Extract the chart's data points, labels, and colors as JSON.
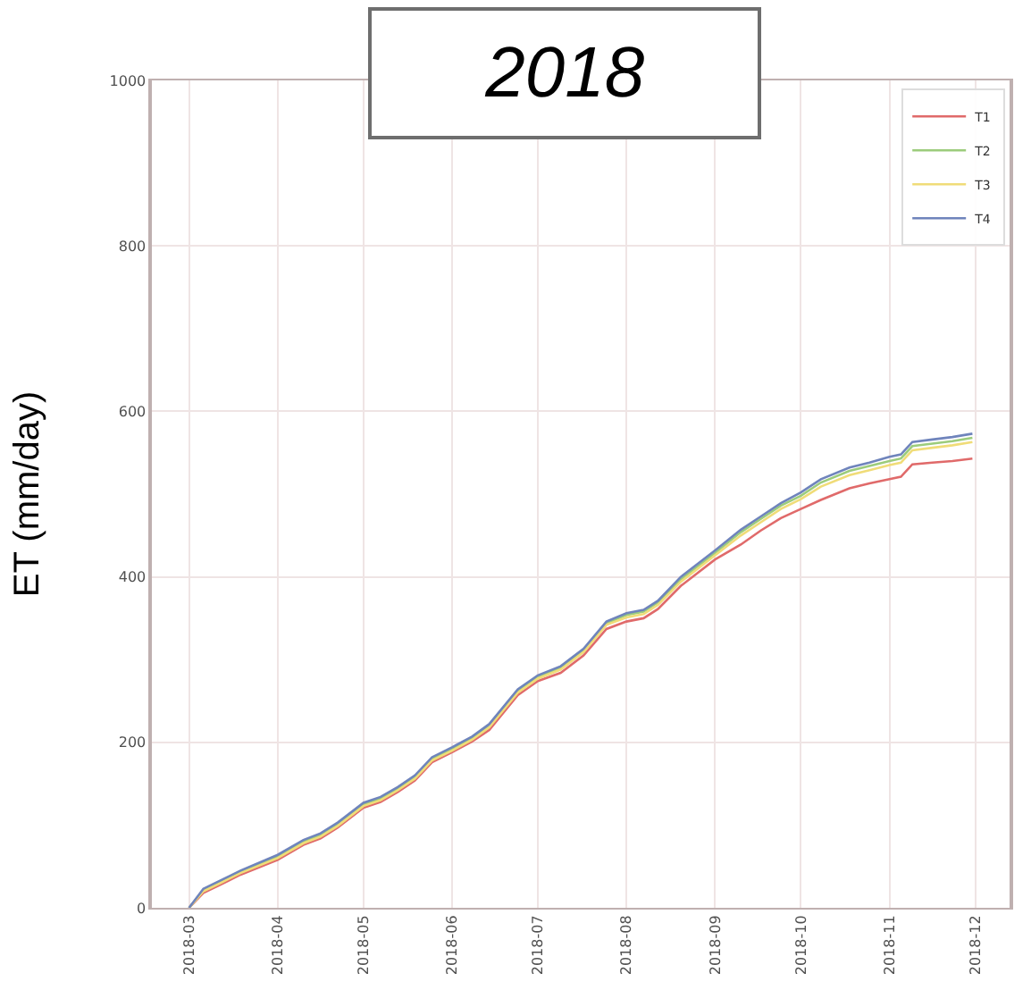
{
  "chart_data": {
    "type": "line",
    "title": "2018",
    "ylabel": "ET (mm/day)",
    "x": [
      "2018-03-01",
      "2018-03-06",
      "2018-03-12",
      "2018-03-19",
      "2018-04-01",
      "2018-04-10",
      "2018-04-16",
      "2018-04-22",
      "2018-05-01",
      "2018-05-07",
      "2018-05-13",
      "2018-05-19",
      "2018-05-25",
      "2018-06-01",
      "2018-06-08",
      "2018-06-14",
      "2018-06-24",
      "2018-07-01",
      "2018-07-09",
      "2018-07-17",
      "2018-07-25",
      "2018-08-01",
      "2018-08-07",
      "2018-08-12",
      "2018-08-20",
      "2018-09-01",
      "2018-09-10",
      "2018-09-17",
      "2018-09-24",
      "2018-10-01",
      "2018-10-08",
      "2018-10-18",
      "2018-10-25",
      "2018-11-01",
      "2018-11-05",
      "2018-11-09",
      "2018-11-16",
      "2018-11-23",
      "2018-11-30"
    ],
    "series": [
      {
        "name": "T1",
        "color": "#e06a6a",
        "values": [
          0,
          18,
          28,
          40,
          58,
          76,
          84,
          97,
          121,
          128,
          140,
          154,
          176,
          188,
          201,
          215,
          257,
          274,
          284,
          305,
          337,
          346,
          350,
          361,
          389,
          421,
          439,
          456,
          471,
          482,
          493,
          507,
          513,
          518,
          521,
          536,
          538,
          540,
          543
        ]
      },
      {
        "name": "T2",
        "color": "#9ccc7c",
        "values": [
          0,
          21,
          31,
          43,
          62,
          80,
          88,
          101,
          125,
          132,
          144,
          158,
          180,
          192,
          205,
          220,
          262,
          279,
          290,
          311,
          344,
          354,
          358,
          369,
          397,
          429,
          454,
          470,
          486,
          498,
          514,
          528,
          534,
          540,
          543,
          558,
          561,
          564,
          568
        ]
      },
      {
        "name": "T3",
        "color": "#f0dc78",
        "values": [
          0,
          20,
          30,
          42,
          60,
          78,
          86,
          99,
          123,
          130,
          142,
          156,
          178,
          190,
          203,
          218,
          260,
          277,
          288,
          309,
          342,
          351,
          355,
          366,
          394,
          426,
          450,
          466,
          482,
          494,
          509,
          523,
          529,
          535,
          538,
          553,
          556,
          559,
          563
        ]
      },
      {
        "name": "T4",
        "color": "#6f84bc",
        "values": [
          0,
          23,
          33,
          45,
          64,
          82,
          90,
          103,
          127,
          134,
          146,
          160,
          182,
          194,
          207,
          222,
          264,
          281,
          292,
          313,
          346,
          356,
          360,
          371,
          400,
          432,
          457,
          473,
          489,
          502,
          518,
          532,
          538,
          545,
          548,
          563,
          566,
          569,
          573
        ]
      }
    ],
    "xlim": [
      "2018-02-16",
      "2018-12-13"
    ],
    "ylim": [
      0,
      1000
    ],
    "xticks": [
      "2018-03",
      "2018-04",
      "2018-05",
      "2018-06",
      "2018-07",
      "2018-08",
      "2018-09",
      "2018-10",
      "2018-11",
      "2018-12"
    ],
    "yticks": [
      0,
      200,
      400,
      600,
      800,
      1000
    ],
    "grid": true,
    "legend": "top right"
  }
}
